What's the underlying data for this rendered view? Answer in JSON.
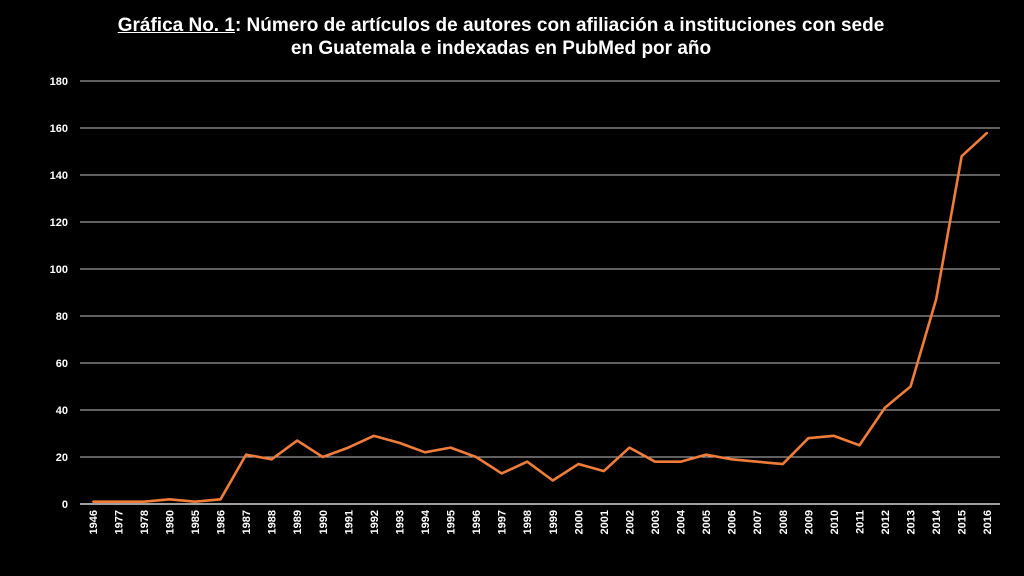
{
  "title": {
    "lead": "Gráfica No. 1",
    "separator": ":",
    "line1_rest": " Número de artículos de autores con afiliación a instituciones con sede",
    "line2": "en Guatemala e indexadas en PubMed por año"
  },
  "colors": {
    "background": "#000000",
    "series_line": "#f07c3a",
    "gridline": "#ffffff",
    "text": "#ffffff"
  },
  "chart_data": {
    "type": "line",
    "title": "Gráfica No. 1: Número de artículos de autores con afiliación a instituciones con sede en Guatemala e indexadas en PubMed por año",
    "xlabel": "",
    "ylabel": "",
    "categories": [
      "1946",
      "1977",
      "1978",
      "1980",
      "1985",
      "1986",
      "1987",
      "1988",
      "1989",
      "1990",
      "1991",
      "1992",
      "1993",
      "1994",
      "1995",
      "1996",
      "1997",
      "1998",
      "1999",
      "2000",
      "2001",
      "2002",
      "2003",
      "2004",
      "2005",
      "2006",
      "2007",
      "2008",
      "2009",
      "2010",
      "2011",
      "2012",
      "2013",
      "2014",
      "2015",
      "2016"
    ],
    "values": [
      1,
      1,
      1,
      2,
      1,
      2,
      21,
      19,
      27,
      20,
      24,
      29,
      26,
      22,
      24,
      20,
      13,
      18,
      10,
      17,
      14,
      24,
      18,
      18,
      21,
      19,
      18,
      17,
      28,
      29,
      25,
      41,
      50,
      87,
      148,
      158
    ],
    "ylim": [
      0,
      180
    ],
    "yticks": [
      0,
      20,
      40,
      60,
      80,
      100,
      120,
      140,
      160,
      180
    ],
    "grid": true,
    "legend": "none"
  }
}
